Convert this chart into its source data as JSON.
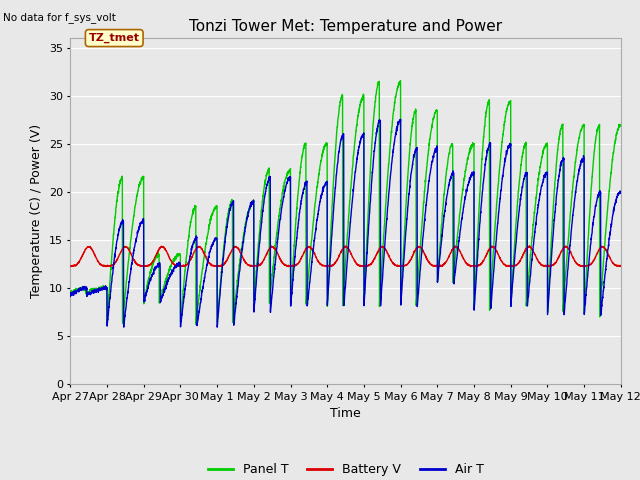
{
  "title": "Tonzi Tower Met: Temperature and Power",
  "xlabel": "Time",
  "ylabel": "Temperature (C) / Power (V)",
  "top_left_text": "No data for f_sys_volt",
  "annotation_text": "TZ_tmet",
  "ylim": [
    0,
    36
  ],
  "yticks": [
    0,
    5,
    10,
    15,
    20,
    25,
    30,
    35
  ],
  "xtick_labels": [
    "Apr 27",
    "Apr 28",
    "Apr 29",
    "Apr 30",
    "May 1",
    "May 2",
    "May 3",
    "May 4",
    "May 5",
    "May 6",
    "May 7",
    "May 8",
    "May 9",
    "May 10",
    "May 11",
    "May 12"
  ],
  "panel_color": "#00CC00",
  "battery_color": "#DD0000",
  "air_color": "#0000CC",
  "bg_color": "#E8E8E8",
  "grid_color": "#FFFFFF",
  "title_fontsize": 11,
  "axis_fontsize": 9,
  "tick_fontsize": 8,
  "panel_peaks": [
    10.0,
    21.5,
    13.5,
    18.5,
    19.0,
    22.3,
    25.0,
    30.0,
    31.5,
    28.5,
    25.0,
    29.5,
    25.0,
    27.0,
    27.0,
    23.0
  ],
  "panel_mins": [
    9.5,
    6.3,
    8.5,
    6.3,
    6.3,
    8.3,
    8.3,
    8.0,
    8.0,
    8.0,
    10.5,
    7.5,
    8.0,
    7.3,
    7.0,
    10.0
  ],
  "air_peaks": [
    10.0,
    17.0,
    12.5,
    15.2,
    19.0,
    21.5,
    21.0,
    26.0,
    27.5,
    24.5,
    22.0,
    25.0,
    22.0,
    23.5,
    20.0,
    20.0
  ],
  "air_mins": [
    9.3,
    6.0,
    8.5,
    6.0,
    6.0,
    7.5,
    8.0,
    8.0,
    8.0,
    8.0,
    10.5,
    7.5,
    8.0,
    7.0,
    7.0,
    10.0
  ],
  "battery_base": 12.3,
  "battery_bump": 2.0
}
